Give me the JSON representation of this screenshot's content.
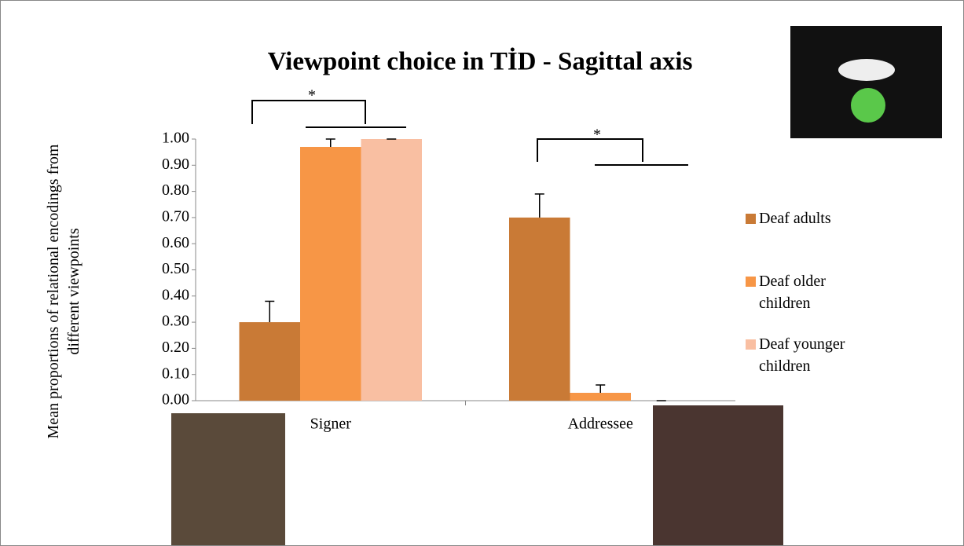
{
  "chart_data": {
    "type": "bar",
    "title": "Viewpoint choice in TİD - Sagittal axis",
    "y_label": "Mean proportions of relational encodings from different viewpoints",
    "categories": [
      "Signer",
      "Addressee"
    ],
    "series": [
      {
        "name": "Deaf adults",
        "color": "#c97a36",
        "values": [
          0.3,
          0.7
        ],
        "errors": [
          0.08,
          0.09
        ]
      },
      {
        "name": "Deaf older children",
        "color": "#f79646",
        "values": [
          0.97,
          0.03
        ],
        "errors": [
          0.03,
          0.03
        ]
      },
      {
        "name": "Deaf younger children",
        "color": "#f9bfa2",
        "values": [
          1.0,
          0.0
        ],
        "errors": [
          0.0,
          0.0
        ]
      }
    ],
    "ylim": [
      0,
      1
    ],
    "yticks": [
      {
        "value": 0,
        "label": "0.00"
      },
      {
        "value": 0.1,
        "label": "0.10"
      },
      {
        "value": 0.2,
        "label": "0.20"
      },
      {
        "value": 0.3,
        "label": "0.30"
      },
      {
        "value": 0.4,
        "label": "0.40"
      },
      {
        "value": 0.5,
        "label": "0.50"
      },
      {
        "value": 0.6,
        "label": "0.60"
      },
      {
        "value": 0.7,
        "label": "0.70"
      },
      {
        "value": 0.8,
        "label": "0.80"
      },
      {
        "value": 0.9,
        "label": "0.90"
      },
      {
        "value": 1,
        "label": "1.00"
      }
    ],
    "annotations": [
      "*",
      "*"
    ],
    "legend": "right"
  }
}
